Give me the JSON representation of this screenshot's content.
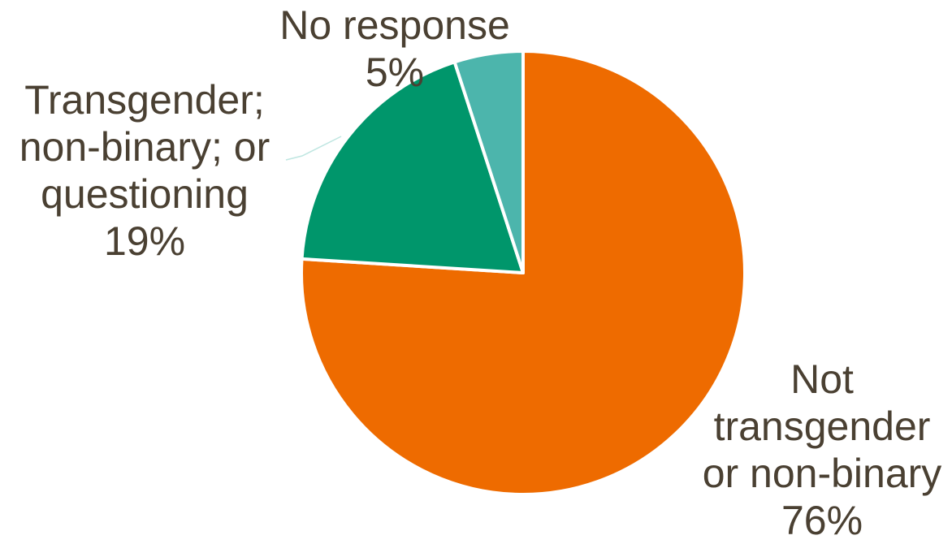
{
  "chart_data": {
    "type": "pie",
    "start_angle_deg": 0,
    "direction": "clockwise",
    "label_color": "#4a4032",
    "slices": [
      {
        "label_lines": [
          "Not",
          "transgender",
          "or non-binary"
        ],
        "percent_label": "76%",
        "value": 76,
        "color": "#ee6b00"
      },
      {
        "label_lines": [
          "Transgender;",
          "non-binary; or",
          "questioning"
        ],
        "percent_label": "19%",
        "value": 19,
        "color": "#00966b"
      },
      {
        "label_lines": [
          "No response"
        ],
        "percent_label": "5%",
        "value": 5,
        "color": "#4cb5ac"
      }
    ]
  }
}
